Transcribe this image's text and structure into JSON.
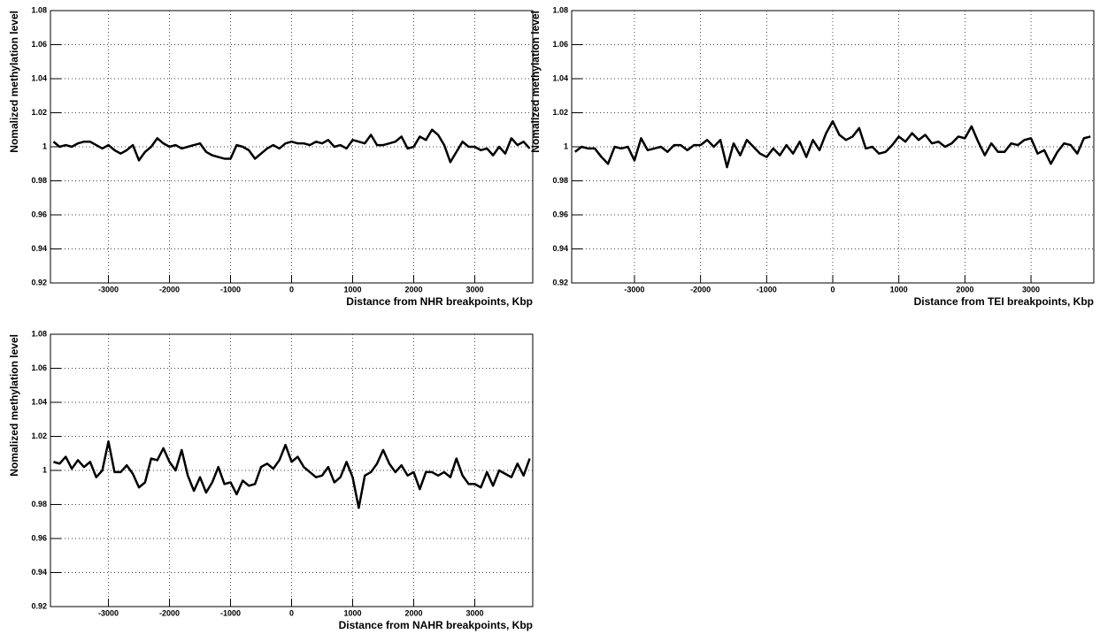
{
  "chart_data": [
    {
      "type": "line",
      "xlabel": "Distance from NHR breakpoints, Kbp",
      "ylabel": "Nomalized methylation level",
      "x": [
        -3900,
        -3800,
        -3700,
        -3600,
        -3500,
        -3400,
        -3300,
        -3200,
        -3100,
        -3000,
        -2900,
        -2800,
        -2700,
        -2600,
        -2500,
        -2400,
        -2300,
        -2200,
        -2100,
        -2000,
        -1900,
        -1800,
        -1700,
        -1600,
        -1500,
        -1400,
        -1300,
        -1200,
        -1100,
        -1000,
        -900,
        -800,
        -700,
        -600,
        -500,
        -400,
        -300,
        -200,
        -100,
        0,
        100,
        200,
        300,
        400,
        500,
        600,
        700,
        800,
        900,
        1000,
        1100,
        1200,
        1300,
        1400,
        1500,
        1600,
        1700,
        1800,
        1900,
        2000,
        2100,
        2200,
        2300,
        2400,
        2500,
        2600,
        2700,
        2800,
        2900,
        3000,
        3100,
        3200,
        3300,
        3400,
        3500,
        3600,
        3700,
        3800,
        3900
      ],
      "values": [
        1.003,
        1.0,
        1.001,
        1.0,
        1.002,
        1.003,
        1.003,
        1.001,
        0.999,
        1.001,
        0.998,
        0.996,
        0.998,
        1.001,
        0.992,
        0.997,
        1.0,
        1.005,
        1.002,
        1.0,
        1.001,
        0.999,
        1.0,
        1.001,
        1.002,
        0.997,
        0.995,
        0.994,
        0.993,
        0.993,
        1.001,
        1.0,
        0.998,
        0.993,
        0.996,
        0.999,
        1.001,
        0.999,
        1.002,
        1.003,
        1.002,
        1.002,
        1.001,
        1.003,
        1.002,
        1.004,
        1.0,
        1.001,
        0.999,
        1.004,
        1.003,
        1.002,
        1.007,
        1.001,
        1.001,
        1.002,
        1.003,
        1.006,
        0.999,
        1.0,
        1.006,
        1.004,
        1.01,
        1.007,
        1.001,
        0.991,
        0.997,
        1.003,
        1.0,
        1.0,
        0.998,
        0.999,
        0.995,
        1.0,
        0.996,
        1.005,
        1.001,
        1.003,
        0.999
      ],
      "color": "#000000",
      "xlim": [
        -3950,
        3950
      ],
      "ylim": [
        0.92,
        1.08
      ],
      "xticks": [
        -3000,
        -2000,
        -1000,
        0,
        1000,
        2000,
        3000
      ],
      "yticks": [
        0.92,
        0.94,
        0.96,
        0.98,
        1,
        1.02,
        1.04,
        1.06,
        1.08
      ],
      "grid": true
    },
    {
      "type": "line",
      "xlabel": "Distance from TEI breakpoints, Kbp",
      "ylabel": "Nomalized methylation level",
      "x": [
        -3900,
        -3800,
        -3700,
        -3600,
        -3500,
        -3400,
        -3300,
        -3200,
        -3100,
        -3000,
        -2900,
        -2800,
        -2700,
        -2600,
        -2500,
        -2400,
        -2300,
        -2200,
        -2100,
        -2000,
        -1900,
        -1800,
        -1700,
        -1600,
        -1500,
        -1400,
        -1300,
        -1200,
        -1100,
        -1000,
        -900,
        -800,
        -700,
        -600,
        -500,
        -400,
        -300,
        -200,
        -100,
        0,
        100,
        200,
        300,
        400,
        500,
        600,
        700,
        800,
        900,
        1000,
        1100,
        1200,
        1300,
        1400,
        1500,
        1600,
        1700,
        1800,
        1900,
        2000,
        2100,
        2200,
        2300,
        2400,
        2500,
        2600,
        2700,
        2800,
        2900,
        3000,
        3100,
        3200,
        3300,
        3400,
        3500,
        3600,
        3700,
        3800,
        3900
      ],
      "values": [
        0.997,
        1.0,
        0.999,
        0.999,
        0.994,
        0.99,
        1.0,
        0.999,
        1.0,
        0.992,
        1.005,
        0.998,
        0.999,
        1.0,
        0.997,
        1.001,
        1.001,
        0.998,
        1.001,
        1.001,
        1.004,
        1.0,
        1.004,
        0.988,
        1.002,
        0.995,
        1.004,
        1.0,
        0.996,
        0.994,
        0.999,
        0.995,
        1.001,
        0.996,
        1.003,
        0.994,
        1.004,
        0.998,
        1.008,
        1.015,
        1.007,
        1.004,
        1.006,
        1.011,
        0.999,
        1.0,
        0.996,
        0.997,
        1.001,
        1.006,
        1.003,
        1.008,
        1.004,
        1.007,
        1.002,
        1.003,
        1.0,
        1.002,
        1.006,
        1.005,
        1.012,
        1.003,
        0.995,
        1.002,
        0.997,
        0.997,
        1.002,
        1.001,
        1.004,
        1.005,
        0.996,
        0.998,
        0.99,
        0.997,
        1.002,
        1.001,
        0.996,
        1.005,
        1.006
      ],
      "color": "#000000",
      "xlim": [
        -3950,
        3950
      ],
      "ylim": [
        0.92,
        1.08
      ],
      "xticks": [
        -3000,
        -2000,
        -1000,
        0,
        1000,
        2000,
        3000
      ],
      "yticks": [
        0.92,
        0.94,
        0.96,
        0.98,
        1,
        1.02,
        1.04,
        1.06,
        1.08
      ],
      "grid": true
    },
    {
      "type": "line",
      "xlabel": "Distance from NAHR breakpoints, Kbp",
      "ylabel": "Nomalized methylation level",
      "x": [
        -3900,
        -3800,
        -3700,
        -3600,
        -3500,
        -3400,
        -3300,
        -3200,
        -3100,
        -3000,
        -2900,
        -2800,
        -2700,
        -2600,
        -2500,
        -2400,
        -2300,
        -2200,
        -2100,
        -2000,
        -1900,
        -1800,
        -1700,
        -1600,
        -1500,
        -1400,
        -1300,
        -1200,
        -1100,
        -1000,
        -900,
        -800,
        -700,
        -600,
        -500,
        -400,
        -300,
        -200,
        -100,
        0,
        100,
        200,
        300,
        400,
        500,
        600,
        700,
        800,
        900,
        1000,
        1100,
        1200,
        1300,
        1400,
        1500,
        1600,
        1700,
        1800,
        1900,
        2000,
        2100,
        2200,
        2300,
        2400,
        2500,
        2600,
        2700,
        2800,
        2900,
        3000,
        3100,
        3200,
        3300,
        3400,
        3500,
        3600,
        3700,
        3800,
        3900
      ],
      "values": [
        1.005,
        1.004,
        1.008,
        1.001,
        1.006,
        1.002,
        1.005,
        0.996,
        1.0,
        1.017,
        0.999,
        0.999,
        1.003,
        0.998,
        0.99,
        0.993,
        1.007,
        1.006,
        1.013,
        1.005,
        1.0,
        1.012,
        0.997,
        0.988,
        0.996,
        0.987,
        0.993,
        1.002,
        0.992,
        0.993,
        0.986,
        0.994,
        0.991,
        0.992,
        1.002,
        1.004,
        1.001,
        1.006,
        1.015,
        1.005,
        1.008,
        1.002,
        0.999,
        0.996,
        0.997,
        1.002,
        0.993,
        0.996,
        1.005,
        0.996,
        0.978,
        0.997,
        0.999,
        1.004,
        1.012,
        1.004,
        0.999,
        1.003,
        0.997,
        0.999,
        0.989,
        0.999,
        0.999,
        0.997,
        0.999,
        0.996,
        1.007,
        0.997,
        0.992,
        0.992,
        0.99,
        0.999,
        0.991,
        1.0,
        0.998,
        0.996,
        1.004,
        0.997,
        1.007
      ],
      "color": "#000000",
      "xlim": [
        -3950,
        3950
      ],
      "ylim": [
        0.92,
        1.08
      ],
      "xticks": [
        -3000,
        -2000,
        -1000,
        0,
        1000,
        2000,
        3000
      ],
      "yticks": [
        0.92,
        0.94,
        0.96,
        0.98,
        1,
        1.02,
        1.04,
        1.06,
        1.08
      ],
      "grid": true
    }
  ]
}
